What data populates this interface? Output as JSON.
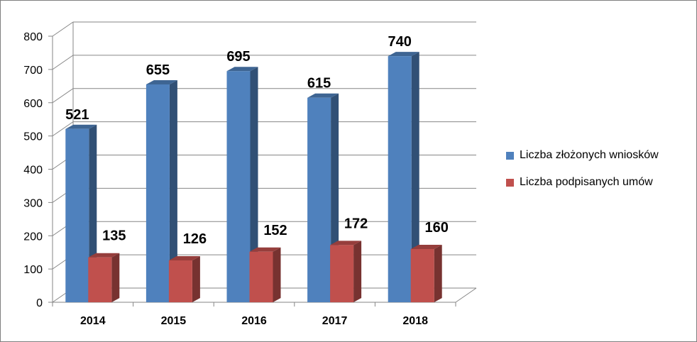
{
  "chart_data": {
    "type": "bar",
    "categories": [
      "2014",
      "2015",
      "2016",
      "2017",
      "2018"
    ],
    "series": [
      {
        "name": "Liczba złożonych wniosków",
        "values": [
          521,
          655,
          695,
          615,
          740
        ],
        "color": "#4f81bd"
      },
      {
        "name": "Liczba podpisanych umów",
        "values": [
          135,
          126,
          152,
          172,
          160
        ],
        "color": "#c0504d"
      }
    ],
    "yticks": [
      "0",
      "100",
      "200",
      "300",
      "400",
      "500",
      "600",
      "700",
      "800"
    ],
    "ylim": [
      0,
      800
    ],
    "grid": true,
    "legend_position": "right",
    "style": "3d-clustered-column"
  }
}
